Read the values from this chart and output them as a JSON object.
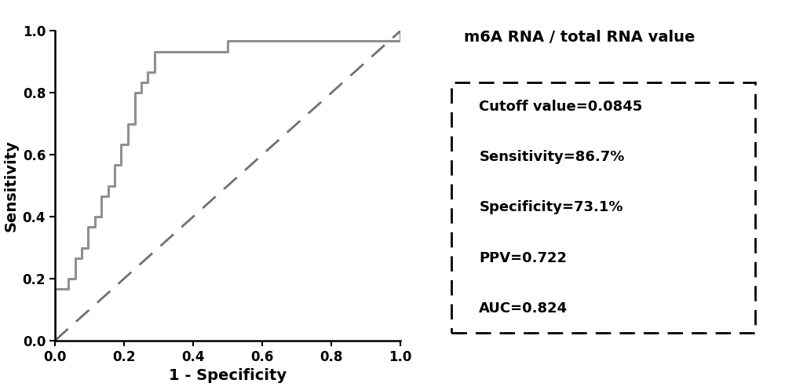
{
  "roc_x": [
    0.0,
    0.0,
    0.038,
    0.038,
    0.058,
    0.058,
    0.077,
    0.077,
    0.096,
    0.096,
    0.115,
    0.115,
    0.135,
    0.135,
    0.154,
    0.154,
    0.173,
    0.173,
    0.192,
    0.192,
    0.212,
    0.212,
    0.231,
    0.231,
    0.25,
    0.25,
    0.269,
    0.269,
    0.288,
    0.288,
    0.5,
    0.5,
    1.0,
    1.0
  ],
  "roc_y": [
    0.0,
    0.167,
    0.167,
    0.2,
    0.2,
    0.267,
    0.267,
    0.3,
    0.3,
    0.367,
    0.367,
    0.4,
    0.4,
    0.467,
    0.467,
    0.5,
    0.5,
    0.567,
    0.567,
    0.633,
    0.633,
    0.7,
    0.7,
    0.8,
    0.8,
    0.833,
    0.833,
    0.867,
    0.867,
    0.933,
    0.933,
    0.967,
    0.967,
    1.0
  ],
  "roc_color": "#909090",
  "roc_linewidth": 2.2,
  "diag_color": "#707070",
  "diag_linewidth": 2.0,
  "xlabel": "1 - Specificity",
  "ylabel": "Sensitivity",
  "xlim": [
    0.0,
    1.0
  ],
  "ylim": [
    0.0,
    1.0
  ],
  "xticks": [
    0.0,
    0.2,
    0.4,
    0.6,
    0.8,
    1.0
  ],
  "yticks": [
    0.0,
    0.2,
    0.4,
    0.6,
    0.8,
    1.0
  ],
  "axis_label_fontsize": 14,
  "tick_fontsize": 12,
  "info_title": "m6A RNA / total RNA value",
  "info_title_fontsize": 14,
  "info_lines": [
    "Cutoff value=0.0845",
    "Sensitivity=86.7%",
    "Specificity=73.1%",
    "PPV=0.722",
    "AUC=0.824"
  ],
  "info_fontsize": 13,
  "box_color": "#000000",
  "text_color": "#000000",
  "background_color": "#ffffff",
  "fig_width": 10.0,
  "fig_height": 4.93
}
